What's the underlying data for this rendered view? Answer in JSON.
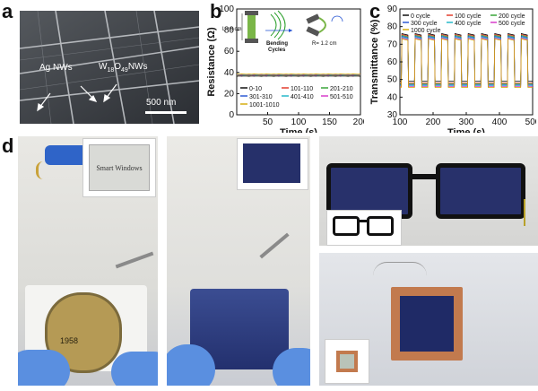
{
  "panels": {
    "a": {
      "letter": "a",
      "labels": {
        "ag": "Ag NWs",
        "w_prefix": "W",
        "w_sub1": "18",
        "w_mid": "O",
        "w_sub2": "49",
        "w_suffix": "NWs"
      },
      "scale_bar": "500 nm"
    },
    "b": {
      "letter": "b",
      "inset_L": "L= 6 cm",
      "inset_bending": "Bending",
      "inset_cycles": "Cycles",
      "inset_R": "R= 1.2 cm"
    },
    "c": {
      "letter": "c"
    },
    "d": {
      "letter": "d",
      "inset_text": "Smart Windows",
      "seal_year": "1958"
    }
  },
  "chart_data": [
    {
      "id": "b",
      "type": "line",
      "xlabel": "Time (s)",
      "ylabel": "Resistance (Ω)",
      "xlim": [
        0,
        200
      ],
      "ylim": [
        0,
        100
      ],
      "xticks": [
        50,
        100,
        150,
        200
      ],
      "yticks": [
        0,
        20,
        40,
        60,
        80,
        100
      ],
      "series": [
        {
          "name": "0-10",
          "color": "#000000",
          "y": 36.6
        },
        {
          "name": "101-110",
          "color": "#e0301e",
          "y": 36.9
        },
        {
          "name": "201-210",
          "color": "#2ca02c",
          "y": 37.2
        },
        {
          "name": "301-310",
          "color": "#1f4fd1",
          "y": 37.5
        },
        {
          "name": "401-410",
          "color": "#17b4c6",
          "y": 37.8
        },
        {
          "name": "501-510",
          "color": "#d62fc8",
          "y": 38.1
        },
        {
          "name": "1001-1010",
          "color": "#d2a700",
          "y": 38.4
        }
      ]
    },
    {
      "id": "c",
      "type": "line",
      "xlabel": "Time (s)",
      "ylabel": "Transmittance (%)",
      "xlim": [
        100,
        500
      ],
      "ylim": [
        30,
        90
      ],
      "xticks": [
        100,
        200,
        300,
        400,
        500
      ],
      "yticks": [
        30,
        40,
        50,
        60,
        70,
        80,
        90
      ],
      "period": 40,
      "cycles": 10,
      "series": [
        {
          "name": "0",
          "word": "cycle",
          "color": "#000000",
          "high": 76,
          "low": 49
        },
        {
          "name": "100",
          "word": "cycle",
          "color": "#e0301e",
          "high": 75.5,
          "low": 48
        },
        {
          "name": "200",
          "word": "cycle",
          "color": "#2ca02c",
          "high": 75,
          "low": 47.5
        },
        {
          "name": "300",
          "word": "cycle",
          "color": "#1f4fd1",
          "high": 74.5,
          "low": 47
        },
        {
          "name": "400",
          "word": "cycle",
          "color": "#17b4c6",
          "high": 74,
          "low": 46.5
        },
        {
          "name": "500",
          "word": "cycle",
          "color": "#d62fc8",
          "high": 73.5,
          "low": 46
        },
        {
          "name": "1000",
          "word": "cycle",
          "color": "#d2a700",
          "high": 73,
          "low": 45.5
        }
      ]
    }
  ]
}
